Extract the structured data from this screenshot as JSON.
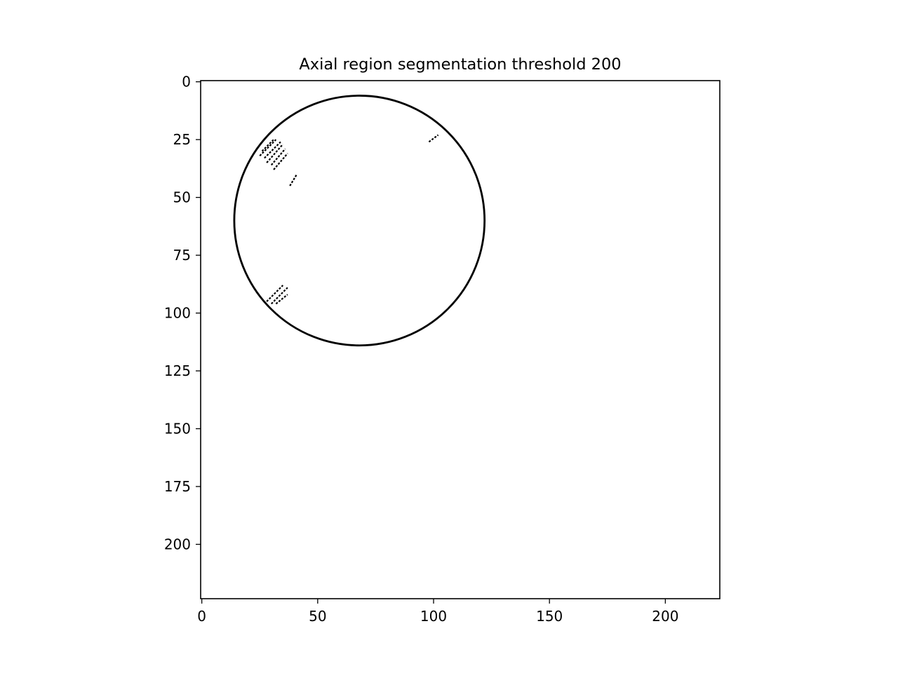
{
  "chart_data": {
    "type": "heatmap",
    "title": "Axial region segmentation threshold 200",
    "xlabel": "",
    "ylabel": "",
    "xlim": [
      -0.5,
      223.5
    ],
    "ylim": [
      223.5,
      -0.5
    ],
    "x_ticks": [
      0,
      50,
      100,
      150,
      200
    ],
    "y_ticks": [
      0,
      25,
      50,
      75,
      100,
      125,
      150,
      175,
      200
    ],
    "colors": {
      "mask": "#000000",
      "background": "#ffffff"
    },
    "grid": false,
    "legend": "none",
    "segments": [
      {
        "name": "outer-boundary",
        "shape": "circle",
        "center": [
          68,
          60
        ],
        "radius": 54
      },
      {
        "name": "upper-left-stripe-1",
        "shape": "line",
        "from": [
          26,
          30
        ],
        "to": [
          31,
          25
        ]
      },
      {
        "name": "upper-left-stripe-2",
        "shape": "line",
        "from": [
          25,
          32
        ],
        "to": [
          32,
          25
        ]
      },
      {
        "name": "upper-left-stripe-3",
        "shape": "line",
        "from": [
          27,
          33
        ],
        "to": [
          34,
          26
        ]
      },
      {
        "name": "upper-left-stripe-4",
        "shape": "line",
        "from": [
          28,
          35
        ],
        "to": [
          35,
          27
        ]
      },
      {
        "name": "upper-left-stripe-5",
        "shape": "line",
        "from": [
          30,
          36
        ],
        "to": [
          36,
          29
        ]
      },
      {
        "name": "upper-left-stripe-6",
        "shape": "line",
        "from": [
          31,
          38
        ],
        "to": [
          37,
          31
        ]
      },
      {
        "name": "upper-left-speck-1",
        "shape": "line",
        "from": [
          38,
          45
        ],
        "to": [
          41,
          40
        ]
      },
      {
        "name": "upper-right-speck",
        "shape": "line",
        "from": [
          98,
          26
        ],
        "to": [
          102,
          23
        ]
      },
      {
        "name": "lower-left-stripe-1",
        "shape": "line",
        "from": [
          28,
          95
        ],
        "to": [
          35,
          88
        ]
      },
      {
        "name": "lower-left-stripe-2",
        "shape": "line",
        "from": [
          30,
          96
        ],
        "to": [
          37,
          89
        ]
      },
      {
        "name": "lower-left-stripe-3",
        "shape": "line",
        "from": [
          32,
          96
        ],
        "to": [
          37,
          92
        ]
      }
    ]
  }
}
